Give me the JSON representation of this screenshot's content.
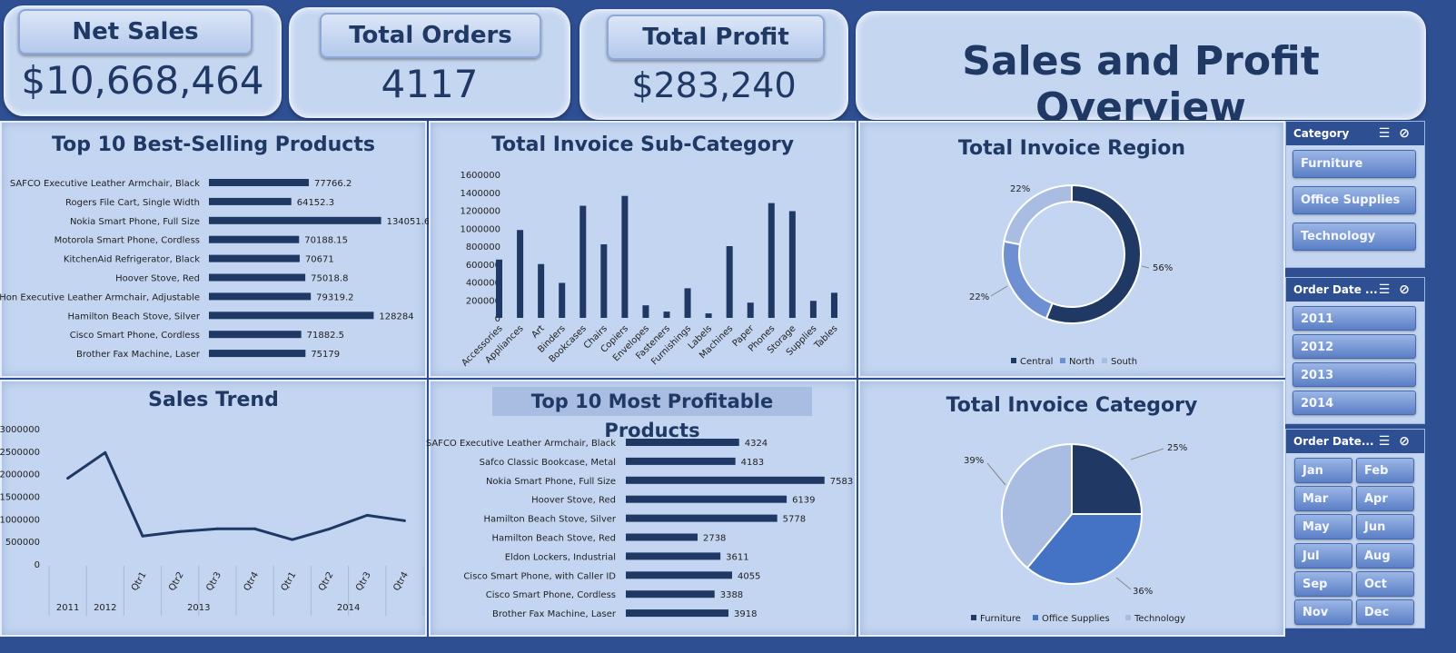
{
  "kpis": {
    "net_sales": {
      "label": "Net Sales",
      "value": "$10,668,464"
    },
    "total_orders": {
      "label": "Total Orders",
      "value": "4117"
    },
    "total_profit": {
      "label": "Total Profit",
      "value": "$283,240"
    }
  },
  "dashboard_title": "Sales and Profit Overview",
  "colors": {
    "dark": "#1f3864",
    "mid": "#4472c4",
    "light": "#a9bde3",
    "panel": "#c3d5f0",
    "bg": "#2f4f93"
  },
  "slicers": {
    "category": {
      "title": "Category",
      "items": [
        "Furniture",
        "Office Supplies",
        "Technology"
      ]
    },
    "years": {
      "title": "Order Date ...",
      "items": [
        "2011",
        "2012",
        "2013",
        "2014"
      ]
    },
    "months": {
      "title": "Order Date...",
      "items": [
        "Jan",
        "Feb",
        "Mar",
        "Apr",
        "May",
        "Jun",
        "Jul",
        "Aug",
        "Sep",
        "Oct",
        "Nov",
        "Dec"
      ]
    }
  },
  "chart_data": [
    {
      "id": "best_selling",
      "type": "bar",
      "orientation": "horizontal",
      "title": "Top 10 Best-Selling Products",
      "categories": [
        "SAFCO Executive Leather Armchair, Black",
        "Rogers File Cart, Single Width",
        "Nokia Smart Phone, Full Size",
        "Motorola Smart Phone, Cordless",
        "KitchenAid Refrigerator, Black",
        "Hoover Stove, Red",
        "Hon Executive Leather Armchair, Adjustable",
        "Hamilton Beach Stove, Silver",
        "Cisco Smart Phone, Cordless",
        "Brother Fax Machine, Laser"
      ],
      "values": [
        77766.2,
        64152.3,
        134051.65,
        70188.15,
        70671,
        75018.8,
        79319.2,
        128284,
        71882.5,
        75179
      ],
      "value_labels": [
        "77766.2",
        "64152.3",
        "134051.65",
        "70188.15",
        "70671",
        "75018.8",
        "79319.2",
        "128284",
        "71882.5",
        "75179"
      ],
      "xlim": [
        0,
        140000
      ]
    },
    {
      "id": "sub_category",
      "type": "bar",
      "title": "Total Invoice Sub-Category",
      "categories": [
        "Accessories",
        "Appliances",
        "Art",
        "Binders",
        "Bookcases",
        "Chairs",
        "Copiers",
        "Envelopes",
        "Fasteners",
        "Furnishings",
        "Labels",
        "Machines",
        "Paper",
        "Phones",
        "Storage",
        "Supplies",
        "Tables"
      ],
      "values": [
        650000,
        980000,
        600000,
        390000,
        1250000,
        820000,
        1360000,
        140000,
        70000,
        330000,
        50000,
        800000,
        170000,
        1280000,
        1190000,
        190000,
        280000
      ],
      "yticks": [
        "0",
        "200000",
        "400000",
        "600000",
        "800000",
        "1000000",
        "1200000",
        "1400000",
        "1600000"
      ],
      "ylim": [
        0,
        1600000
      ]
    },
    {
      "id": "region",
      "type": "pie",
      "donut": true,
      "title": "Total Invoice Region",
      "labels": [
        "Central",
        "North",
        "South"
      ],
      "values": [
        56,
        22,
        22
      ],
      "pct_labels": [
        "56%",
        "22%",
        "22%"
      ]
    },
    {
      "id": "sales_trend",
      "type": "line",
      "title": "Sales Trend",
      "x": [
        "2011",
        "2012",
        "Qtr1",
        "Qtr2",
        "Qtr3",
        "Qtr4",
        "Qtr1",
        "Qtr2",
        "Qtr3",
        "Qtr4"
      ],
      "groups": [
        "",
        "",
        "2013",
        "",
        "",
        "",
        "2014",
        "",
        "",
        ""
      ],
      "values": [
        1900000,
        2470000,
        620000,
        720000,
        780000,
        780000,
        540000,
        780000,
        1080000,
        960000
      ],
      "yticks": [
        "0",
        "500000",
        "1000000",
        "1500000",
        "2000000",
        "2500000",
        "3000000"
      ],
      "ylim": [
        0,
        3000000
      ]
    },
    {
      "id": "most_profitable",
      "type": "bar",
      "orientation": "horizontal",
      "title": "Top 10 Most Profitable Products",
      "categories": [
        "SAFCO Executive Leather Armchair, Black",
        "Safco Classic Bookcase, Metal",
        "Nokia Smart Phone, Full Size",
        "Hoover Stove, Red",
        "Hamilton Beach Stove, Silver",
        "Hamilton Beach Stove, Red",
        "Eldon Lockers, Industrial",
        "Cisco Smart Phone, with Caller ID",
        "Cisco Smart Phone, Cordless",
        "Brother Fax Machine, Laser"
      ],
      "values": [
        4324,
        4183,
        7583,
        6139,
        5778,
        2738,
        3611,
        4055,
        3388,
        3918
      ],
      "value_labels": [
        "4324",
        "4183",
        "7583",
        "6139",
        "5778",
        "2738",
        "3611",
        "4055",
        "3388",
        "3918"
      ],
      "xlim": [
        0,
        7800
      ]
    },
    {
      "id": "category",
      "type": "pie",
      "title": "Total Invoice Category",
      "labels": [
        "Furniture",
        "Office Supplies",
        "Technology"
      ],
      "values": [
        25,
        36,
        39
      ],
      "pct_labels": [
        "25%",
        "36%",
        "39%"
      ]
    }
  ]
}
